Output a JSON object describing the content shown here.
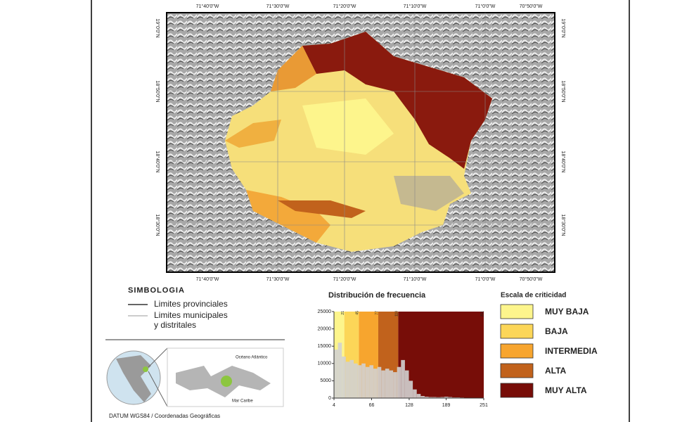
{
  "map": {
    "lon_labels": [
      "71°40'0\"W",
      "71°30'0\"W",
      "71°20'0\"W",
      "71°10'0\"W",
      "71°0'0\"W",
      "70°50'0\"W"
    ],
    "lat_labels": [
      "19°0'0\"N",
      "18°50'0\"N",
      "18°40'0\"N",
      "18°30'0\"N"
    ]
  },
  "legend": {
    "title": "SIMBOLOGIA",
    "items": [
      {
        "lines": [
          "Limites provinciales"
        ]
      },
      {
        "lines": [
          "Limites municipales",
          "y distritales"
        ]
      }
    ]
  },
  "inset": {
    "labels": [
      "Océano Atlántico",
      "Mar Caribe"
    ]
  },
  "footer": "DATUM WGS84 / Coordenadas Geográficas",
  "chart_data": {
    "type": "histogram",
    "title": "Distribución de frecuencia",
    "bins": [
      4,
      10.5,
      17,
      23.5,
      30,
      36.5,
      43,
      49.5,
      56,
      62.5,
      69,
      75.5,
      82,
      88.5,
      95,
      101.5,
      108,
      114.5,
      121,
      127.5,
      134,
      140.5,
      147,
      153.5,
      160,
      166.5,
      173,
      179.5,
      186,
      192.5,
      199,
      205.5,
      212,
      218.5,
      225,
      231.5,
      238,
      244.5,
      251
    ],
    "values": [
      14000,
      16000,
      12000,
      10500,
      11000,
      10000,
      9500,
      10000,
      9000,
      9500,
      8500,
      9000,
      8000,
      8500,
      8000,
      7500,
      9000,
      11000,
      8000,
      5000,
      2500,
      1200,
      600,
      400,
      300,
      300,
      250,
      300,
      400,
      300,
      200,
      200,
      150,
      100,
      100,
      100,
      50,
      50
    ],
    "color": "#d2d2d2",
    "xlim": [
      4,
      251
    ],
    "xticks": [
      4,
      66,
      128,
      189,
      251
    ],
    "ylim": [
      0,
      25000
    ],
    "yticks": [
      0,
      5000,
      10000,
      15000,
      20000,
      25000
    ],
    "classes_title": "Escala de criticidad",
    "classes": [
      {
        "name": "MUY BAJA",
        "color": "#fdf58c",
        "range": [
          4,
          21
        ]
      },
      {
        "name": "BAJA",
        "color": "#fcd658",
        "range": [
          21,
          45
        ]
      },
      {
        "name": "INTERMEDIA",
        "color": "#f7a52e",
        "range": [
          45,
          77
        ]
      },
      {
        "name": "ALTA",
        "color": "#c1621c",
        "range": [
          77,
          110
        ]
      },
      {
        "name": "MUY ALTA",
        "color": "#770d08",
        "range": [
          110,
          251
        ]
      }
    ]
  }
}
